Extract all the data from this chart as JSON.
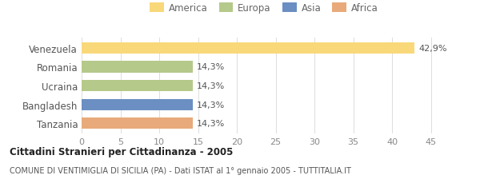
{
  "categories": [
    "Venezuela",
    "Romania",
    "Ucraina",
    "Bangladesh",
    "Tanzania"
  ],
  "values": [
    42.9,
    14.3,
    14.3,
    14.3,
    14.3
  ],
  "labels": [
    "42,9%",
    "14,3%",
    "14,3%",
    "14,3%",
    "14,3%"
  ],
  "colors": [
    "#f9d87a",
    "#b5c98a",
    "#b5c98a",
    "#6b8fc2",
    "#e8aa7a"
  ],
  "continent_colors": {
    "America": "#f9d87a",
    "Europa": "#b5c98a",
    "Asia": "#6b8fc2",
    "Africa": "#e8aa7a"
  },
  "legend_order": [
    "America",
    "Europa",
    "Asia",
    "Africa"
  ],
  "xlim": [
    0,
    47
  ],
  "xticks": [
    0,
    5,
    10,
    15,
    20,
    25,
    30,
    35,
    40,
    45
  ],
  "title": "Cittadini Stranieri per Cittadinanza - 2005",
  "subtitle": "COMUNE DI VENTIMIGLIA DI SICILIA (PA) - Dati ISTAT al 1° gennaio 2005 - TUTTITALIA.IT",
  "background_color": "#ffffff",
  "bar_height": 0.6
}
